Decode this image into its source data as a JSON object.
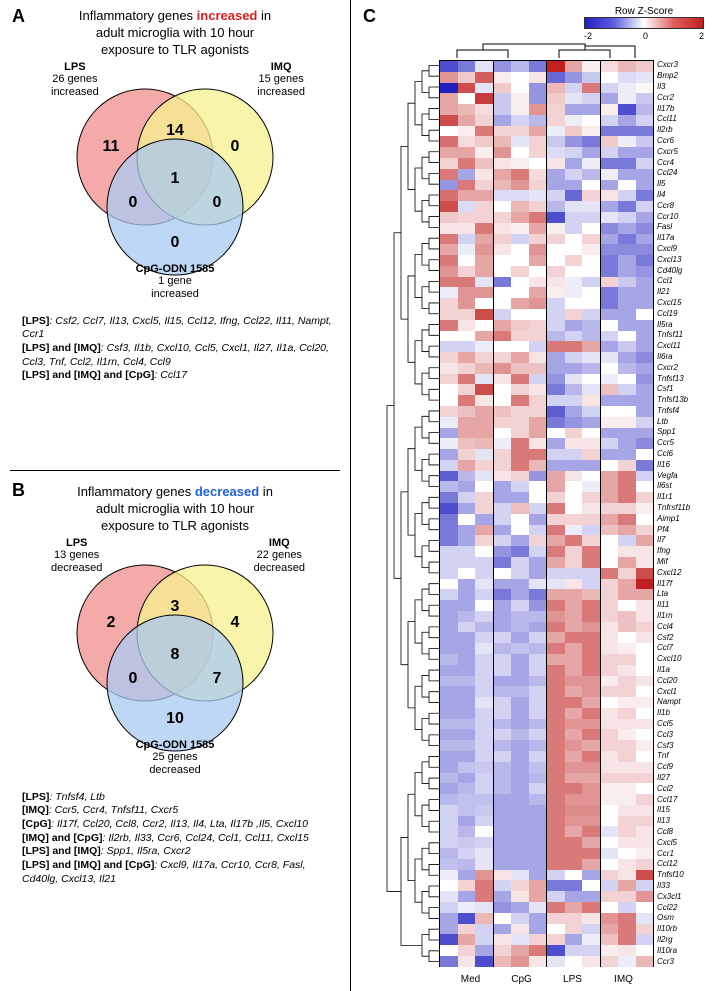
{
  "panel_a": {
    "label": "A",
    "title_line1": "Inflammatory genes ",
    "title_hl": "increased",
    "title_line2": " in",
    "title_line3": "adult microglia with 10 hour",
    "title_line4": "exposure to TLR agonists",
    "hl_color": "#d62020",
    "circles": {
      "a_name": "LPS",
      "a_sub": "26 genes\nincreased",
      "a_color": "#f28e8e",
      "b_name": "IMQ",
      "b_sub": "15 genes\nincreased",
      "b_color": "#f5f18e",
      "c_name": "CpG-ODN 1585",
      "c_sub": "1 gene\nincreased",
      "c_color": "#a8caf0"
    },
    "counts": {
      "a": "11",
      "b": "0",
      "c": "0",
      "ab": "14",
      "ac": "0",
      "bc": "0",
      "abc": "1"
    },
    "lists": [
      {
        "tag": "[LPS]",
        "text": "Csf2, Ccl7, Il13, Cxcl5, Il15, Ccl12, Ifng, Ccl22, Il11, Nampt, Ccr1"
      },
      {
        "tag": "[LPS] and [IMQ]",
        "text": "Csf3, Il1b, Cxcl10, Ccl5, Cxcl1, Il27, Il1a, Ccl20, Ccl3, Tnf, Ccl2, Il1rn, Ccl4, Ccl9"
      },
      {
        "tag": "[LPS] and [IMQ] and [CpG]",
        "text": "Ccl17"
      }
    ]
  },
  "panel_b": {
    "label": "B",
    "title_line1": "Inflammatory genes ",
    "title_hl": "decreased",
    "title_line2": " in",
    "title_line3": "adult microglia with 10 hour",
    "title_line4": "exposure to TLR agonists",
    "hl_color": "#2060d6",
    "circles": {
      "a_name": "LPS",
      "a_sub": "13 genes\ndecreased",
      "a_color": "#f28e8e",
      "b_name": "IMQ",
      "b_sub": "22 genes\ndecreased",
      "b_color": "#f5f18e",
      "c_name": "CpG-ODN 1585",
      "c_sub": "25 genes\ndecreased",
      "c_color": "#a8caf0"
    },
    "counts": {
      "a": "2",
      "b": "4",
      "c": "10",
      "ab": "3",
      "ac": "0",
      "bc": "7",
      "abc": "8"
    },
    "lists": [
      {
        "tag": "[LPS]",
        "text": "Tnfsf4, Ltb"
      },
      {
        "tag": "[IMQ]",
        "text": "Ccr5, Ccr4, Tnfsf11, Cxcr5"
      },
      {
        "tag": "[CpG]",
        "text": "Il17f, Ccl20, Ccl8, Ccr2, Il13, Il4, Lta, Il17b ,Il5, Cxcl10"
      },
      {
        "tag": "[IMQ] and [CpG]",
        "text": "Il2rb, Il33, Ccr6, Ccl24, Ccl1, Ccl11, Cxcl15"
      },
      {
        "tag": "[LPS] and [IMQ]",
        "text": "Spp1, Il5ra, Cxcr2"
      },
      {
        "tag": "[LPS] and [IMQ] and [CpG]",
        "text": "Cxcl9, Il17a, Ccr10, Ccr8, Fasl, Cd40lg, Cxcl13, Il21"
      }
    ]
  },
  "panel_c": {
    "label": "C",
    "legend_title": "Row Z-Score",
    "ticks": [
      "-2",
      "0",
      "2"
    ],
    "conditions": [
      "Med",
      "CpG",
      "LPS",
      "IMQ"
    ],
    "reps": 3,
    "z_colors": {
      "min": "#2020c0",
      "mid": "#ffffff",
      "max": "#c02020"
    },
    "genes": [
      "Cxcr3",
      "Bmp2",
      "Il3",
      "Ccr2",
      "Il17b",
      "Ccl11",
      "Il2rb",
      "Ccr6",
      "Cxcr5",
      "Ccr4",
      "Ccl24",
      "Il5",
      "Il4",
      "Ccr8",
      "Ccr10",
      "Fasl",
      "Il17a",
      "Cxcl9",
      "Cxcl13",
      "Cd40lg",
      "Ccl1",
      "Il21",
      "Cxcl15",
      "Ccl19",
      "Il5ra",
      "Tnfsf11",
      "Cxcl11",
      "Il6ra",
      "Cxcr2",
      "Tnfsf13",
      "Csf1",
      "Tnfsf13b",
      "Tnfsf4",
      "Ltb",
      "Spp1",
      "Ccr5",
      "Ccl6",
      "Il16",
      "Vegfa",
      "Il6st",
      "Il1r1",
      "Tnfrsf11b",
      "Aimp1",
      "Pf4",
      "Il7",
      "Ifng",
      "Mif",
      "Cxcl12",
      "Il17f",
      "Lta",
      "Il11",
      "Il1rn",
      "Ccl4",
      "Csf2",
      "Ccl7",
      "Cxcl10",
      "Il1a",
      "Ccl20",
      "Cxcl1",
      "Nampt",
      "Il1b",
      "Ccl5",
      "Ccl3",
      "Csf3",
      "Tnf",
      "Ccl9",
      "Il27",
      "Ccl2",
      "Ccl17",
      "Il15",
      "Il13",
      "Ccl8",
      "Cxcl5",
      "Ccr1",
      "Ccl12",
      "Tnfsf10",
      "Il33",
      "Cx3cl1",
      "Ccl22",
      "Osm",
      "Il10rb",
      "Il2rg",
      "Il10ra",
      "Ccr3"
    ],
    "values": [
      [
        -2,
        -1.5,
        -0.3,
        -1.2,
        -0.8,
        -1.5,
        2.5,
        1.0,
        0.2,
        0.4,
        0.8,
        0.6
      ],
      [
        1.2,
        0.6,
        1.8,
        0.2,
        0.0,
        0.3,
        -1.7,
        -1.2,
        -0.6,
        0.0,
        -0.4,
        -0.3
      ],
      [
        -2.5,
        2.0,
        -0.3,
        0.6,
        0.0,
        -1.2,
        0.8,
        -0.5,
        1.5,
        -0.5,
        -0.2,
        0.1
      ],
      [
        1.0,
        0.0,
        2.2,
        -0.6,
        0.2,
        -1.2,
        0.6,
        -0.3,
        -0.5,
        -1.0,
        -0.2,
        -0.6
      ],
      [
        1.0,
        0.8,
        0.4,
        -0.6,
        0.2,
        1.2,
        0.5,
        -1.0,
        -1.0,
        0.2,
        -2.0,
        -0.8
      ],
      [
        2.0,
        1.0,
        0.5,
        -1.0,
        -0.5,
        -0.8,
        0.5,
        -0.2,
        0.0,
        -0.5,
        -1.0,
        -0.5
      ],
      [
        0.0,
        0.2,
        1.5,
        0.5,
        0.5,
        1.0,
        -0.2,
        0.6,
        0.2,
        -1.5,
        -1.5,
        -1.5
      ],
      [
        1.6,
        0.4,
        0.6,
        0.8,
        -0.3,
        0.5,
        -0.6,
        -1.2,
        -1.5,
        0.6,
        -0.2,
        -0.6
      ],
      [
        1.0,
        1.0,
        0.2,
        1.2,
        0.0,
        0.5,
        -0.4,
        -0.5,
        -1.0,
        -0.5,
        -1.0,
        -1.0
      ],
      [
        0.5,
        1.5,
        0.7,
        0.3,
        0.2,
        0.0,
        0.3,
        -1.0,
        -0.2,
        -1.5,
        -1.5,
        -0.5
      ],
      [
        1.5,
        -1.0,
        0.3,
        1.0,
        1.5,
        0.4,
        -1.0,
        -0.5,
        -0.8,
        -0.2,
        -1.0,
        -1.0
      ],
      [
        -1.2,
        1.5,
        0.5,
        0.8,
        1.2,
        0.5,
        -1.0,
        -1.0,
        0.0,
        -1.0,
        0.0,
        -1.0
      ],
      [
        1.6,
        1.0,
        1.0,
        -0.4,
        -0.4,
        -0.3,
        -0.5,
        -1.7,
        0.5,
        0.3,
        -0.5,
        -1.5
      ],
      [
        2.0,
        -0.4,
        0.5,
        0.0,
        0.8,
        0.5,
        -0.8,
        -0.3,
        -0.3,
        -1.0,
        -1.5,
        -0.5
      ],
      [
        0.6,
        0.5,
        0.5,
        0.5,
        1.0,
        1.5,
        -2.0,
        -0.5,
        -0.5,
        -0.3,
        -0.5,
        -1.0
      ],
      [
        0.3,
        0.3,
        1.5,
        0.3,
        0.2,
        1.0,
        0.2,
        -0.5,
        0.0,
        -1.3,
        -1.0,
        -1.3
      ],
      [
        1.5,
        -0.5,
        1.0,
        0.5,
        -0.5,
        0.5,
        0.5,
        0.0,
        0.5,
        -1.0,
        -1.5,
        -1.0
      ],
      [
        1.0,
        -0.2,
        1.2,
        0.3,
        0.0,
        1.2,
        0.0,
        0.0,
        0.2,
        -1.3,
        -1.3,
        -1.3
      ],
      [
        1.5,
        0.0,
        1.0,
        0.0,
        0.0,
        1.0,
        0.0,
        0.5,
        0.0,
        -1.5,
        -1.0,
        -1.5
      ],
      [
        1.2,
        0.5,
        1.0,
        0.0,
        0.5,
        0.0,
        0.5,
        0.0,
        0.0,
        -1.5,
        -1.0,
        -1.2
      ],
      [
        1.5,
        1.5,
        -0.3,
        -1.5,
        0.0,
        0.3,
        0.3,
        -0.2,
        -0.5,
        0.5,
        -0.6,
        -1.0
      ],
      [
        -0.2,
        1.2,
        1.2,
        0.0,
        0.0,
        1.0,
        0.2,
        -0.2,
        0.0,
        -1.5,
        -1.0,
        -1.0
      ],
      [
        0.5,
        1.2,
        0.0,
        0.0,
        1.0,
        1.2,
        -0.5,
        0.0,
        0.0,
        -1.5,
        -1.0,
        -1.0
      ],
      [
        0.5,
        0.5,
        2.0,
        -0.5,
        0.0,
        0.0,
        -0.5,
        0.5,
        -0.5,
        -1.0,
        -1.0,
        0.0
      ],
      [
        1.5,
        0.3,
        0.0,
        1.0,
        0.6,
        0.5,
        -0.5,
        -1.0,
        -0.8,
        0.0,
        -1.0,
        -1.0
      ],
      [
        0.0,
        0.0,
        1.0,
        1.5,
        0.5,
        0.5,
        -0.8,
        -0.5,
        -0.8,
        -0.5,
        0.0,
        -1.0
      ],
      [
        -0.5,
        -0.5,
        -0.2,
        0.0,
        0.0,
        -0.5,
        1.5,
        1.5,
        1.0,
        -1.0,
        -0.6,
        -1.0
      ],
      [
        0.5,
        1.0,
        0.5,
        0.5,
        1.0,
        0.3,
        -1.0,
        -0.5,
        -0.3,
        -0.3,
        -1.0,
        -1.3
      ],
      [
        0.3,
        0.5,
        0.8,
        1.2,
        0.7,
        0.7,
        -1.0,
        -1.0,
        -0.8,
        0.0,
        -0.8,
        -1.0
      ],
      [
        0.5,
        1.5,
        -0.3,
        0.3,
        1.5,
        -0.5,
        -1.2,
        -0.3,
        0.0,
        -0.2,
        0.0,
        -1.2
      ],
      [
        0.0,
        0.5,
        2.0,
        0.0,
        0.5,
        0.3,
        -1.5,
        -0.8,
        -0.3,
        0.7,
        -0.5,
        -1.0
      ],
      [
        0.0,
        1.5,
        0.3,
        0.0,
        1.5,
        0.5,
        -0.5,
        -0.5,
        0.3,
        -1.0,
        -1.0,
        -1.0
      ],
      [
        0.5,
        0.7,
        1.0,
        0.7,
        0.5,
        0.5,
        -1.8,
        -1.0,
        -0.5,
        0.0,
        0.0,
        -1.0
      ],
      [
        -0.2,
        1.0,
        1.0,
        0.5,
        0.5,
        1.0,
        -1.5,
        -1.2,
        -1.0,
        0.2,
        0.2,
        -0.5
      ],
      [
        -1.0,
        1.0,
        1.0,
        0.0,
        0.5,
        1.0,
        0.0,
        0.5,
        0.0,
        -1.0,
        -1.0,
        -1.0
      ],
      [
        -0.2,
        0.7,
        0.8,
        -0.2,
        1.5,
        0.3,
        -1.0,
        0.3,
        0.3,
        -0.5,
        -1.0,
        -1.3
      ],
      [
        -1.0,
        0.5,
        -0.3,
        0.5,
        1.5,
        1.5,
        -0.5,
        -0.5,
        0.5,
        -1.0,
        -1.0,
        0.0
      ],
      [
        -0.5,
        1.0,
        0.5,
        0.5,
        1.5,
        0.8,
        -1.0,
        -1.0,
        -1.0,
        0.0,
        0.5,
        -1.5
      ],
      [
        -1.8,
        -0.8,
        -0.3,
        0.3,
        0.5,
        -1.2,
        1.0,
        0.3,
        0.0,
        1.0,
        1.5,
        -0.5
      ],
      [
        -0.8,
        -1.0,
        0.0,
        -1.0,
        -0.5,
        0.0,
        1.0,
        0.0,
        -0.2,
        1.0,
        1.5,
        0.0
      ],
      [
        -1.5,
        -0.5,
        0.5,
        -1.0,
        -1.0,
        0.0,
        0.5,
        0.0,
        0.5,
        1.0,
        1.5,
        0.5
      ],
      [
        -2.0,
        -1.0,
        0.5,
        -0.5,
        0.7,
        -0.5,
        1.5,
        0.0,
        0.3,
        0.5,
        0.5,
        0.2
      ],
      [
        -1.5,
        0.0,
        -1.0,
        -0.5,
        0.0,
        -1.0,
        0.5,
        0.5,
        0.5,
        1.0,
        1.5,
        0.0
      ],
      [
        -1.5,
        -1.0,
        1.0,
        -1.0,
        0.0,
        -0.5,
        1.5,
        -0.2,
        -0.5,
        0.7,
        1.0,
        0.5
      ],
      [
        -1.5,
        -1.0,
        0.5,
        -0.5,
        -1.0,
        0.5,
        1.0,
        1.5,
        0.5,
        0.0,
        -0.5,
        1.0
      ],
      [
        -0.5,
        -0.5,
        0.0,
        -1.2,
        -1.5,
        -0.5,
        1.5,
        0.5,
        1.5,
        0.0,
        0.3,
        0.3
      ],
      [
        -0.5,
        -0.5,
        -0.5,
        -1.5,
        -0.5,
        -1.0,
        1.0,
        0.5,
        1.5,
        0.0,
        1.0,
        0.3
      ],
      [
        -0.5,
        0.0,
        -0.5,
        0.0,
        -0.5,
        -1.0,
        -0.5,
        -0.5,
        -0.5,
        1.5,
        0.5,
        2.0
      ],
      [
        0.0,
        -1.0,
        -0.3,
        -1.0,
        -1.0,
        -0.3,
        -0.3,
        0.3,
        -0.5,
        0.5,
        1.0,
        2.5
      ],
      [
        -0.5,
        -1.0,
        -0.5,
        -1.5,
        -1.0,
        -1.5,
        1.0,
        1.0,
        0.8,
        0.5,
        1.0,
        1.0
      ],
      [
        -1.0,
        -1.0,
        0.0,
        -1.0,
        -0.5,
        -1.2,
        1.5,
        1.0,
        1.5,
        0.5,
        0.0,
        0.3
      ],
      [
        -1.0,
        -0.8,
        -0.5,
        -1.0,
        -0.8,
        -0.8,
        1.2,
        1.0,
        1.5,
        0.5,
        0.7,
        0.3
      ],
      [
        -1.0,
        -0.5,
        -0.8,
        -1.0,
        -0.8,
        -1.0,
        1.5,
        1.0,
        1.2,
        0.3,
        0.7,
        0.5
      ],
      [
        -1.0,
        -1.0,
        -0.5,
        -0.5,
        -1.0,
        -0.5,
        1.0,
        1.5,
        1.5,
        0.3,
        0.0,
        0.3
      ],
      [
        -1.0,
        -1.0,
        -0.3,
        -0.8,
        -0.7,
        -0.8,
        1.5,
        1.0,
        1.5,
        0.3,
        0.2,
        0.0
      ],
      [
        -0.8,
        -1.0,
        -0.5,
        -0.5,
        -1.0,
        -0.5,
        1.0,
        1.0,
        1.5,
        0.5,
        0.5,
        0.0
      ],
      [
        -1.0,
        -1.0,
        -0.5,
        -0.5,
        -1.0,
        -0.5,
        1.5,
        1.0,
        1.5,
        0.5,
        0.3,
        0.0
      ],
      [
        -0.8,
        -0.8,
        -0.5,
        -1.0,
        -1.0,
        -0.8,
        1.5,
        1.2,
        1.2,
        0.2,
        0.5,
        0.3
      ],
      [
        -1.0,
        -1.0,
        -0.5,
        -0.8,
        -0.8,
        -0.5,
        1.5,
        1.0,
        1.2,
        0.5,
        0.5,
        0.0
      ],
      [
        -1.0,
        -1.0,
        -0.3,
        -0.5,
        -1.0,
        -0.5,
        1.5,
        1.5,
        1.0,
        0.0,
        0.2,
        0.2
      ],
      [
        -1.0,
        -1.0,
        -0.5,
        -0.5,
        -1.0,
        -0.5,
        1.5,
        1.0,
        1.5,
        0.3,
        0.5,
        0.0
      ],
      [
        -0.8,
        -0.8,
        -0.5,
        -0.8,
        -1.0,
        -0.8,
        1.5,
        1.2,
        1.2,
        0.3,
        0.3,
        0.3
      ],
      [
        -1.0,
        -1.0,
        -0.5,
        -0.5,
        -0.8,
        -0.5,
        1.5,
        1.0,
        1.5,
        0.5,
        0.2,
        0.0
      ],
      [
        -0.8,
        -0.8,
        -0.5,
        -0.8,
        -1.0,
        -0.8,
        1.5,
        1.2,
        1.0,
        0.5,
        0.5,
        0.2
      ],
      [
        -1.0,
        -1.0,
        -0.5,
        -0.5,
        -1.0,
        -0.5,
        1.5,
        1.0,
        1.5,
        0.3,
        0.5,
        0.0
      ],
      [
        -1.0,
        -0.7,
        -0.6,
        -0.8,
        -1.0,
        -0.7,
        1.5,
        1.2,
        1.2,
        0.3,
        0.3,
        0.3
      ],
      [
        -0.8,
        -1.0,
        -0.5,
        -0.8,
        -1.0,
        -0.8,
        1.5,
        1.0,
        1.0,
        0.5,
        0.5,
        0.5
      ],
      [
        -1.0,
        -0.8,
        -0.5,
        -0.8,
        -1.0,
        -0.5,
        1.5,
        1.5,
        1.2,
        0.2,
        0.2,
        0.0
      ],
      [
        -0.8,
        -0.7,
        -0.7,
        -1.0,
        -1.0,
        -0.8,
        1.5,
        1.2,
        1.2,
        0.2,
        0.2,
        0.5
      ],
      [
        -0.5,
        -0.7,
        -0.6,
        -1.0,
        -1.0,
        -1.0,
        1.5,
        1.3,
        1.3,
        0.0,
        0.3,
        0.3
      ],
      [
        -0.5,
        -1.0,
        -0.5,
        -1.0,
        -1.0,
        -1.0,
        1.5,
        1.2,
        1.2,
        0.0,
        0.5,
        0.5
      ],
      [
        -0.5,
        -0.8,
        0.0,
        -1.0,
        -1.0,
        -1.0,
        1.5,
        1.0,
        1.5,
        -0.3,
        0.5,
        0.3
      ],
      [
        -0.5,
        -0.6,
        -0.5,
        -1.0,
        -1.0,
        -1.0,
        1.5,
        1.5,
        1.0,
        0.0,
        0.3,
        0.3
      ],
      [
        -0.8,
        -0.5,
        -0.3,
        -1.0,
        -1.0,
        -1.0,
        1.5,
        1.5,
        1.5,
        -0.3,
        0.0,
        0.2
      ],
      [
        -0.7,
        -0.8,
        -0.3,
        -1.0,
        -1.0,
        -1.0,
        1.5,
        1.5,
        1.0,
        0.0,
        0.3,
        0.5
      ],
      [
        -0.2,
        -1.0,
        1.2,
        0.3,
        -0.3,
        -1.0,
        -0.5,
        0.0,
        -1.0,
        0.5,
        0.3,
        2.0
      ],
      [
        0.0,
        0.5,
        1.5,
        -0.5,
        0.5,
        1.0,
        -1.5,
        -1.5,
        0.0,
        -0.5,
        1.0,
        -0.5
      ],
      [
        -0.3,
        -1.0,
        1.5,
        -1.0,
        0.3,
        1.0,
        -0.5,
        -1.0,
        -1.0,
        0.5,
        0.5,
        1.2
      ],
      [
        -0.5,
        -0.2,
        -0.3,
        -1.2,
        -1.0,
        -0.3,
        1.5,
        1.0,
        1.5,
        0.0,
        -0.5,
        0.0
      ],
      [
        -1.0,
        -2.0,
        0.8,
        0.0,
        -0.5,
        -1.0,
        0.5,
        0.5,
        0.3,
        1.2,
        1.5,
        -0.3
      ],
      [
        -1.0,
        0.5,
        -0.5,
        -1.0,
        0.3,
        -1.0,
        0.0,
        0.5,
        -0.5,
        1.0,
        1.5,
        0.5
      ],
      [
        -2.0,
        1.0,
        -0.5,
        0.3,
        -0.3,
        0.5,
        0.5,
        -1.0,
        -0.2,
        0.7,
        1.5,
        -0.5
      ],
      [
        0.0,
        0.5,
        -1.0,
        0.5,
        1.0,
        1.5,
        -2.0,
        -0.5,
        -0.5,
        0.2,
        0.3,
        0.0
      ],
      [
        -1.5,
        0.3,
        -2.0,
        0.8,
        1.2,
        0.3,
        -0.3,
        0.0,
        0.3,
        0.5,
        -0.2,
        0.8
      ]
    ]
  }
}
